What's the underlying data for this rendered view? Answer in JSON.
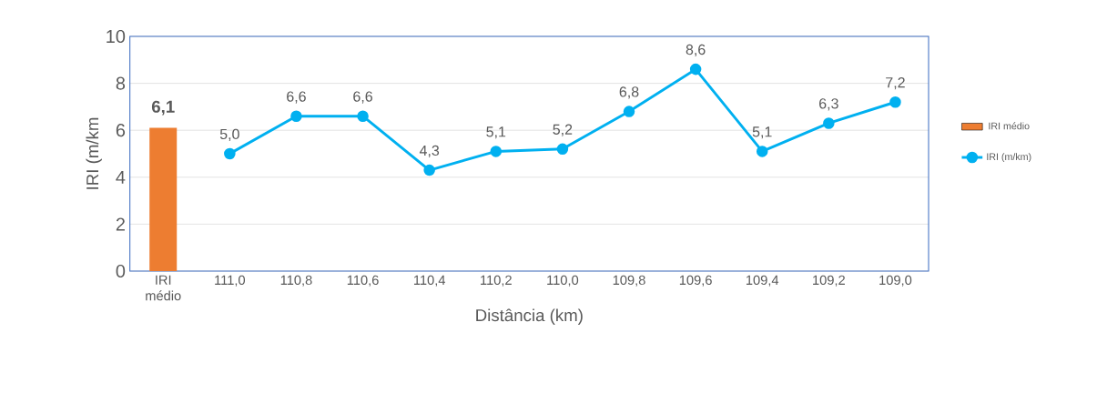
{
  "chart_data": {
    "type": "bar",
    "xlabel": "Distância (km)",
    "ylabel": "IRI (m/km",
    "categories": [
      "IRI médio",
      "111,0",
      "110,8",
      "110,6",
      "110,4",
      "110,2",
      "110,0",
      "109,8",
      "109,6",
      "109,4",
      "109,2",
      "109,0"
    ],
    "series": [
      {
        "name": "IRI médio",
        "color": "#ed7d31",
        "values": [
          6.1,
          null,
          null,
          null,
          null,
          null,
          null,
          null,
          null,
          null,
          null,
          null
        ],
        "value_labels": [
          "6,1",
          null,
          null,
          null,
          null,
          null,
          null,
          null,
          null,
          null,
          null,
          null
        ]
      },
      {
        "name": "IRI (m/km)",
        "type": "line",
        "color": "#00b0f0",
        "marker": "circle",
        "values": [
          null,
          5.0,
          6.6,
          6.6,
          4.3,
          5.1,
          5.2,
          6.8,
          8.6,
          5.1,
          6.3,
          7.2
        ],
        "value_labels": [
          null,
          "5,0",
          "6,6",
          "6,6",
          "4,3",
          "5,1",
          "5,2",
          "6,8",
          "8,6",
          "5,1",
          "6,3",
          "7,2"
        ]
      }
    ],
    "ylim": [
      0,
      10
    ],
    "yticks": [
      0,
      2,
      4,
      6,
      8,
      10
    ],
    "grid": "y",
    "legend": "right"
  }
}
